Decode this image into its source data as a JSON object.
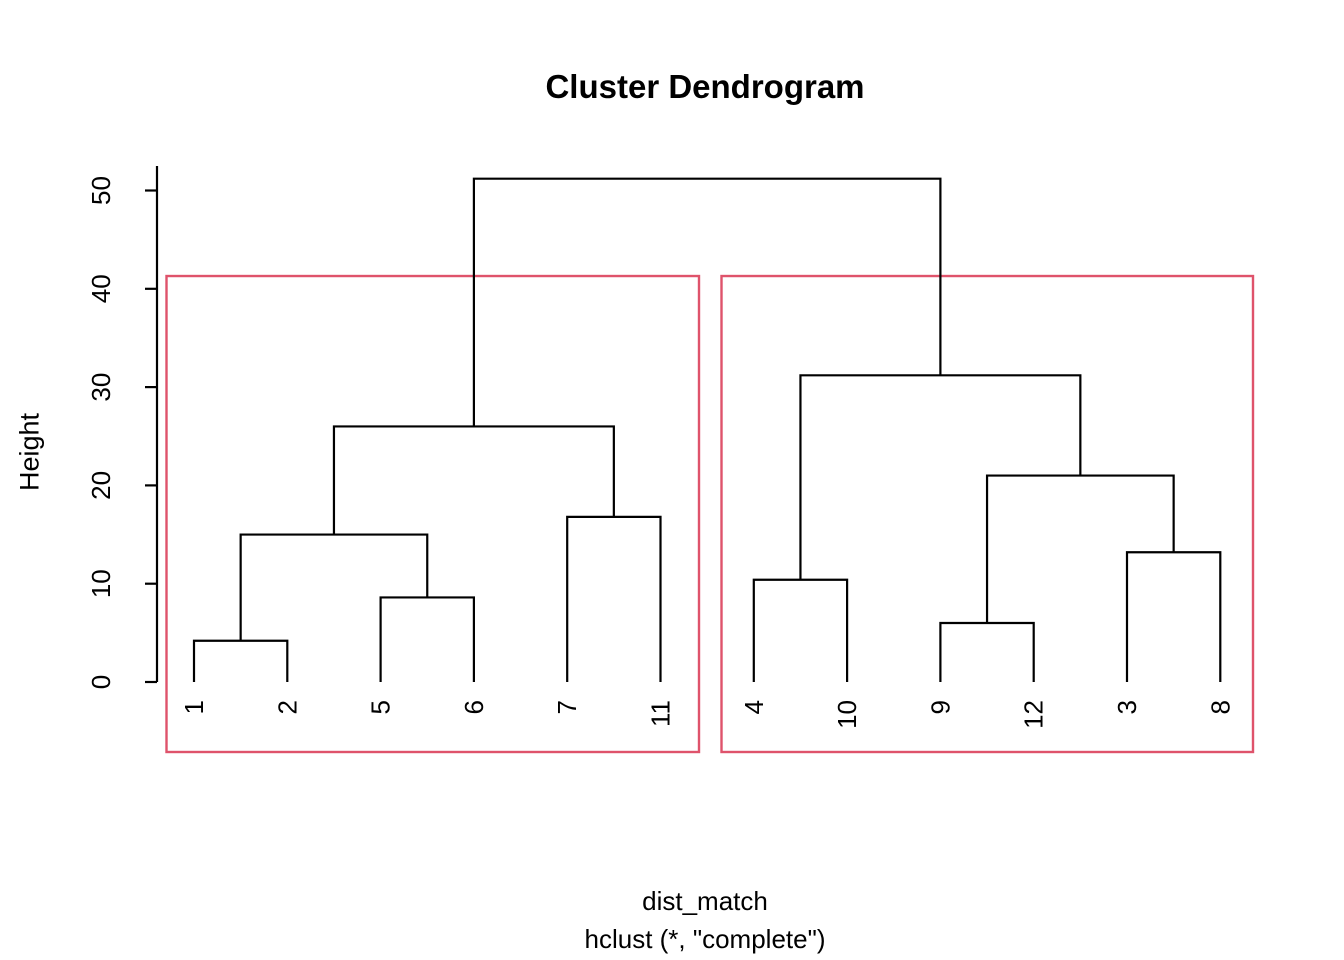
{
  "title": "Cluster Dendrogram",
  "y_axis": {
    "label": "Height",
    "ticks": [
      0,
      10,
      20,
      30,
      40,
      50
    ]
  },
  "caption": {
    "line1": "dist_match",
    "line2": "hclust (*, \"complete\")"
  },
  "colors": {
    "line": "#000000",
    "cluster_box": "#DF536B",
    "background": "#FFFFFF"
  },
  "chart_data": {
    "type": "dendrogram",
    "title": "Cluster Dendrogram",
    "ylabel": "Height",
    "xlabel_lines": [
      "dist_match",
      "hclust (*, \"complete\")"
    ],
    "ylim": [
      0,
      51.2
    ],
    "leaf_order": [
      "1",
      "2",
      "5",
      "6",
      "7",
      "11",
      "4",
      "10",
      "9",
      "12",
      "3",
      "8"
    ],
    "tree": {
      "h": 51.2,
      "children": [
        {
          "h": 26.0,
          "children": [
            {
              "h": 15.0,
              "children": [
                {
                  "h": 4.2,
                  "children": [
                    {
                      "leaf": "1"
                    },
                    {
                      "leaf": "2"
                    }
                  ]
                },
                {
                  "h": 8.6,
                  "children": [
                    {
                      "leaf": "5"
                    },
                    {
                      "leaf": "6"
                    }
                  ]
                }
              ]
            },
            {
              "h": 16.8,
              "children": [
                {
                  "leaf": "7"
                },
                {
                  "leaf": "11"
                }
              ]
            }
          ]
        },
        {
          "h": 31.2,
          "children": [
            {
              "h": 10.4,
              "children": [
                {
                  "leaf": "4"
                },
                {
                  "leaf": "10"
                }
              ]
            },
            {
              "h": 21.0,
              "children": [
                {
                  "h": 6.0,
                  "children": [
                    {
                      "leaf": "9"
                    },
                    {
                      "leaf": "12"
                    }
                  ]
                },
                {
                  "h": 13.2,
                  "children": [
                    {
                      "leaf": "3"
                    },
                    {
                      "leaf": "8"
                    }
                  ]
                }
              ]
            }
          ]
        }
      ]
    },
    "cluster_boxes": {
      "count": 2,
      "border_color": "#DF536B",
      "top_height": 41.3,
      "boxes": [
        {
          "leaves": [
            "1",
            "2",
            "5",
            "6",
            "7",
            "11"
          ]
        },
        {
          "leaves": [
            "4",
            "10",
            "9",
            "12",
            "3",
            "8"
          ]
        }
      ]
    }
  }
}
